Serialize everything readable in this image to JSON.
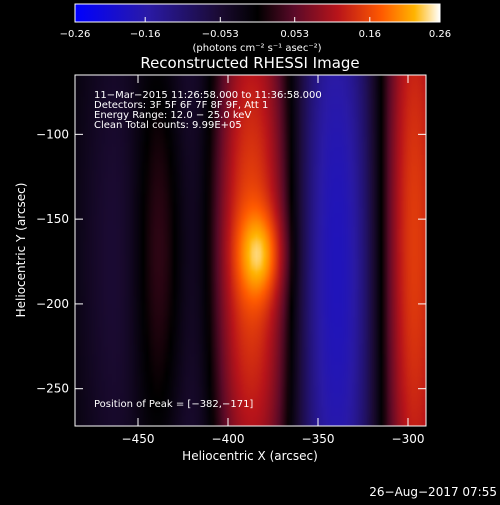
{
  "chart_data": {
    "type": "heatmap",
    "title": "Reconstructed RHESSI Image",
    "xlabel": "Heliocentric X (arcsec)",
    "ylabel": "Heliocentric Y (arcsec)",
    "xlim": [
      -485,
      -290
    ],
    "ylim": [
      -272,
      -65
    ],
    "x_ticks": [
      {
        "value": -450,
        "label": "−450"
      },
      {
        "value": -400,
        "label": "−400"
      },
      {
        "value": -350,
        "label": "−350"
      },
      {
        "value": -300,
        "label": "−300"
      }
    ],
    "y_ticks": [
      {
        "value": -100,
        "label": "−100"
      },
      {
        "value": -150,
        "label": "−150"
      },
      {
        "value": -200,
        "label": "−200"
      },
      {
        "value": -250,
        "label": "−250"
      }
    ],
    "colorbar": {
      "range": [
        -0.26,
        0.26
      ],
      "unit_label": "(photons cm⁻² s⁻¹ asec⁻²)",
      "ticks": [
        {
          "value": -0.26,
          "label": "−0.26"
        },
        {
          "value": -0.16,
          "label": "−0.16"
        },
        {
          "value": -0.053,
          "label": "−0.053"
        },
        {
          "value": 0.053,
          "label": "0.053"
        },
        {
          "value": 0.16,
          "label": "0.16"
        },
        {
          "value": 0.26,
          "label": "0.26"
        }
      ]
    },
    "info_lines": [
      "11−Mar−2015 11:26:58.000 to 11:36:58.000",
      "Detectors: 3F 5F 6F 7F 8F 9F, Att 1",
      "Energy Range: 12.0 − 25.0 keV",
      "Clean    Total counts: 9.99E+05"
    ],
    "peak_label": "Position of Peak = [−382,−171]",
    "peak": {
      "x": -382,
      "y": -171,
      "value": 0.26
    },
    "bands": [
      {
        "x": -460,
        "sx": 18,
        "sy": 150,
        "y": -175,
        "amp": -0.06
      },
      {
        "x": -437,
        "sx": 11,
        "sy": 90,
        "y": -170,
        "amp": 0.085
      },
      {
        "x": -418,
        "sx": 14,
        "sy": 200,
        "y": -170,
        "amp": -0.11
      },
      {
        "x": -390,
        "sx": 20,
        "sy": 130,
        "y": -165,
        "amp": 0.17
      },
      {
        "x": -382,
        "sx": 9,
        "sy": 18,
        "y": -171,
        "amp": 0.09
      },
      {
        "x": -355,
        "sx": 11,
        "sy": 220,
        "y": -170,
        "amp": -0.07
      },
      {
        "x": -335,
        "sx": 16,
        "sy": 200,
        "y": -180,
        "amp": -0.17
      },
      {
        "x": -298,
        "sx": 14,
        "sy": 180,
        "y": -165,
        "amp": 0.16
      }
    ]
  },
  "footer": {
    "timestamp": "26−Aug−2017 07:55"
  }
}
